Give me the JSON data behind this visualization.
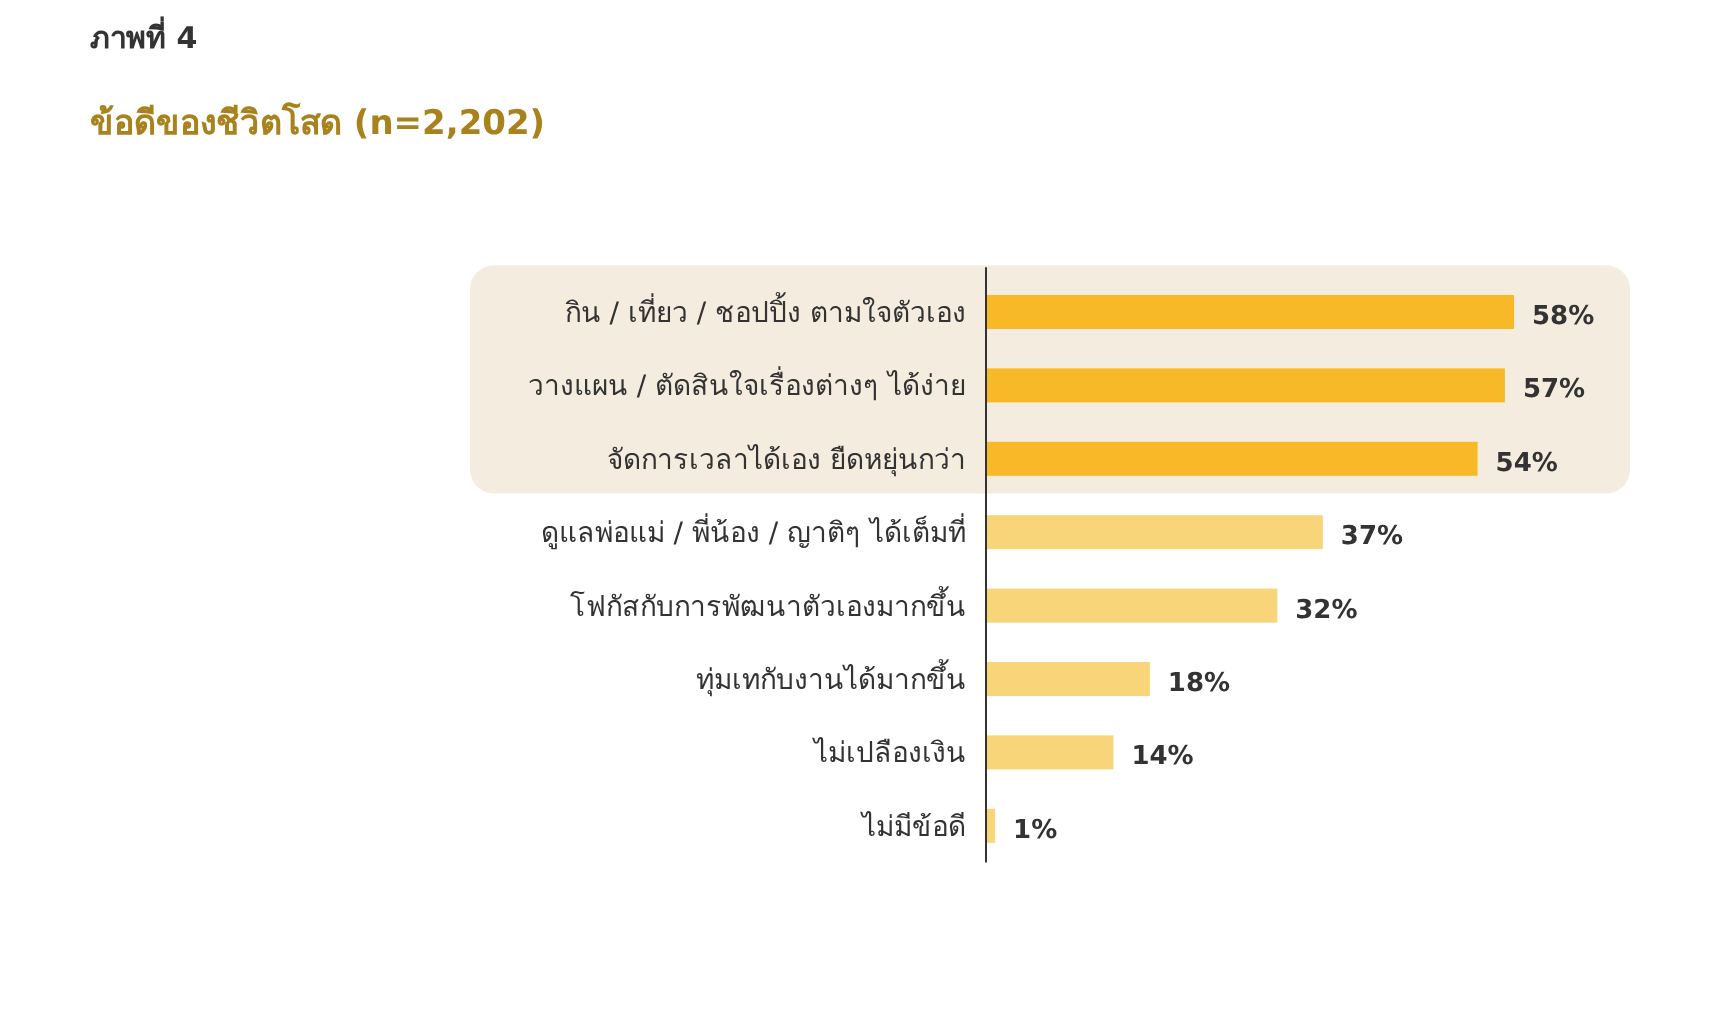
{
  "chart_data": {
    "type": "bar",
    "orientation": "horizontal",
    "title": "ภาพที่ 4",
    "subtitle": "ข้อดีของชีวิตโสด (n=2,202)",
    "categories": [
      "กิน / เที่ยว / ชอปปิ้ง ตามใจตัวเอง",
      "วางแผน / ตัดสินใจเรื่องต่างๆ ได้ง่าย",
      "จัดการเวลาได้เอง ยืดหยุ่นกว่า",
      "ดูแลพ่อแม่ / พี่น้อง / ญาติๆ ได้เต็มที่",
      "โฟกัสกับการพัฒนาตัวเองมากขึ้น",
      "ทุ่มเทกับงานได้มากขึ้น",
      "ไม่เปลืองเงิน",
      "ไม่มีข้อดี"
    ],
    "values": [
      58,
      57,
      54,
      37,
      32,
      18,
      14,
      1
    ],
    "colors": [
      "#f7b928",
      "#f7b928",
      "#f7b928",
      "#f9d57a",
      "#f9d57a",
      "#f9d57a",
      "#f9d57a",
      "#f9d57a"
    ],
    "value_labels": [
      "58%",
      "57%",
      "54%",
      "37%",
      "32%",
      "18%",
      "14%",
      "1%"
    ],
    "bands": [
      {
        "axis": "y",
        "from": "กิน / เที่ยว / ชอปปิ้ง ตามใจตัวเอง",
        "to": "จัดการเวลาได้เอง ยืดหยุ่นกว่า",
        "color": "#f4eddf"
      }
    ]
  }
}
